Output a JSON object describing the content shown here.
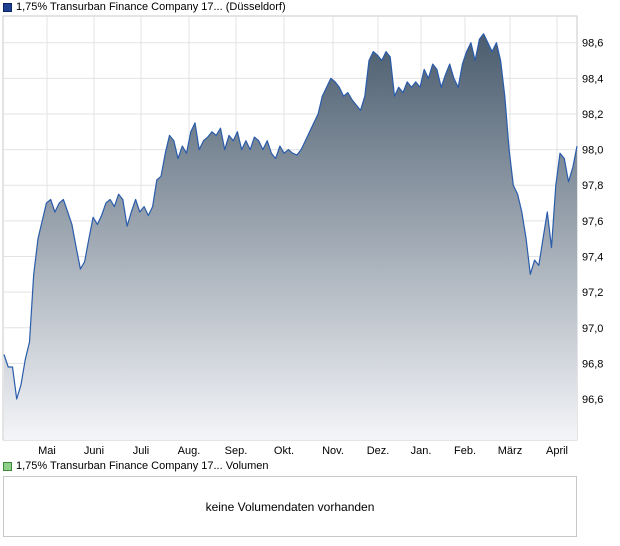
{
  "legend": {
    "price_label": "1,75% Transurban Finance Company 17... (Düsseldorf)",
    "volume_label": "1,75% Transurban Finance Company 17... Volumen",
    "price_color": "#1f3f8f",
    "volume_color": "#8fd08a"
  },
  "volume": {
    "message": "keine Volumendaten vorhanden"
  },
  "chart_data": {
    "type": "area",
    "title": "1,75% Transurban Finance Company 17... (Düsseldorf)",
    "xlabel": "",
    "ylabel": "",
    "ylim": [
      96.37,
      98.75
    ],
    "grid": true,
    "y_axis_side": "right",
    "line_color": "#2a5caa",
    "fill_gradient": [
      "#4a5c6e",
      "#f4f5f8"
    ],
    "x_ticks": [
      "Mai",
      "Juni",
      "Juli",
      "Aug.",
      "Sep.",
      "Okt.",
      "Nov.",
      "Dez.",
      "Jan.",
      "Feb.",
      "März",
      "April"
    ],
    "y_ticks": [
      "96,6",
      "96,8",
      "97,0",
      "97,2",
      "97,4",
      "97,6",
      "97,8",
      "98,0",
      "98,2",
      "98,4",
      "98,6"
    ],
    "series": [
      {
        "values": [
          96.85,
          96.78,
          96.78,
          96.6,
          96.68,
          96.82,
          96.92,
          97.3,
          97.5,
          97.6,
          97.7,
          97.72,
          97.65,
          97.7,
          97.72,
          97.65,
          97.58,
          97.45,
          97.33,
          97.37,
          97.5,
          97.62,
          97.58,
          97.63,
          97.7,
          97.72,
          97.68,
          97.75,
          97.72,
          97.57,
          97.65,
          97.72,
          97.65,
          97.68,
          97.63,
          97.68,
          97.83,
          97.85,
          97.98,
          98.08,
          98.05,
          97.95,
          98.02,
          97.98,
          98.1,
          98.15,
          98.0,
          98.05,
          98.07,
          98.1,
          98.08,
          98.12,
          98.0,
          98.08,
          98.05,
          98.1,
          98.0,
          98.05,
          98.0,
          98.07,
          98.05,
          98.0,
          98.05,
          97.98,
          97.95,
          98.02,
          97.98,
          98.0,
          97.98,
          97.97,
          98.0,
          98.05,
          98.1,
          98.15,
          98.2,
          98.3,
          98.35,
          98.4,
          98.38,
          98.35,
          98.3,
          98.32,
          98.28,
          98.25,
          98.22,
          98.3,
          98.5,
          98.55,
          98.53,
          98.5,
          98.55,
          98.52,
          98.3,
          98.35,
          98.32,
          98.38,
          98.35,
          98.38,
          98.35,
          98.45,
          98.4,
          98.48,
          98.45,
          98.35,
          98.42,
          98.48,
          98.4,
          98.35,
          98.48,
          98.55,
          98.6,
          98.5,
          98.62,
          98.65,
          98.6,
          98.55,
          98.6,
          98.5,
          98.3,
          98.0,
          97.8,
          97.75,
          97.65,
          97.5,
          97.3,
          97.38,
          97.35,
          97.5,
          97.65,
          97.45,
          97.8,
          97.98,
          97.95,
          97.82,
          97.9,
          98.02
        ]
      }
    ]
  }
}
